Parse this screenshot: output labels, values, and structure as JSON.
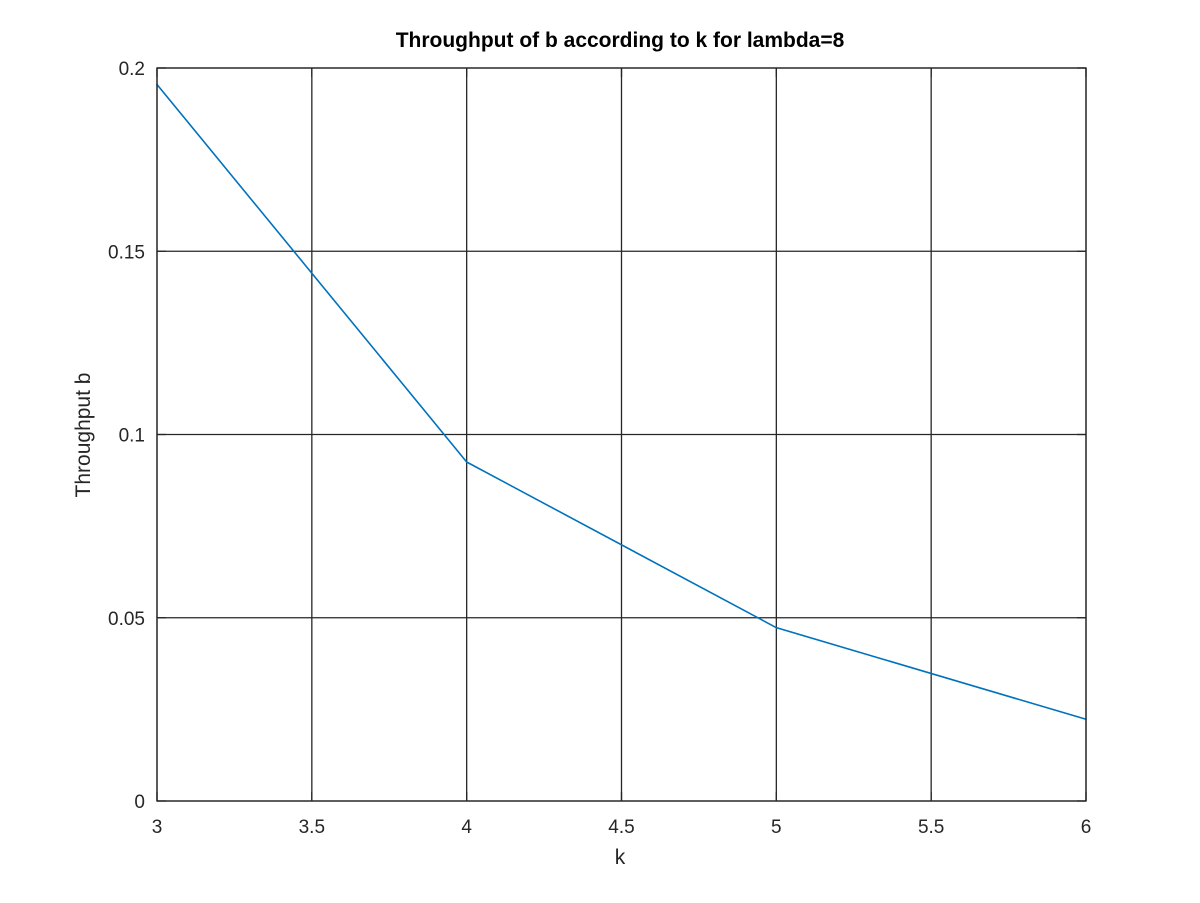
{
  "chart_data": {
    "type": "line",
    "title": "Throughput of b according to k for lambda=8",
    "xlabel": "k",
    "ylabel": "Throughput b",
    "xlim": [
      3,
      6
    ],
    "ylim": [
      0,
      0.2
    ],
    "xticks": [
      3,
      3.5,
      4,
      4.5,
      5,
      5.5,
      6
    ],
    "xtick_labels": [
      "3",
      "3.5",
      "4",
      "4.5",
      "5",
      "5.5",
      "6"
    ],
    "yticks": [
      0,
      0.05,
      0.1,
      0.15,
      0.2
    ],
    "ytick_labels": [
      "0",
      "0.05",
      "0.1",
      "0.15",
      "0.2"
    ],
    "grid": true,
    "series": [
      {
        "color": "#0072BD",
        "x": [
          3,
          4,
          5,
          6
        ],
        "y": [
          0.1955,
          0.0925,
          0.0473,
          0.0223
        ]
      }
    ]
  }
}
